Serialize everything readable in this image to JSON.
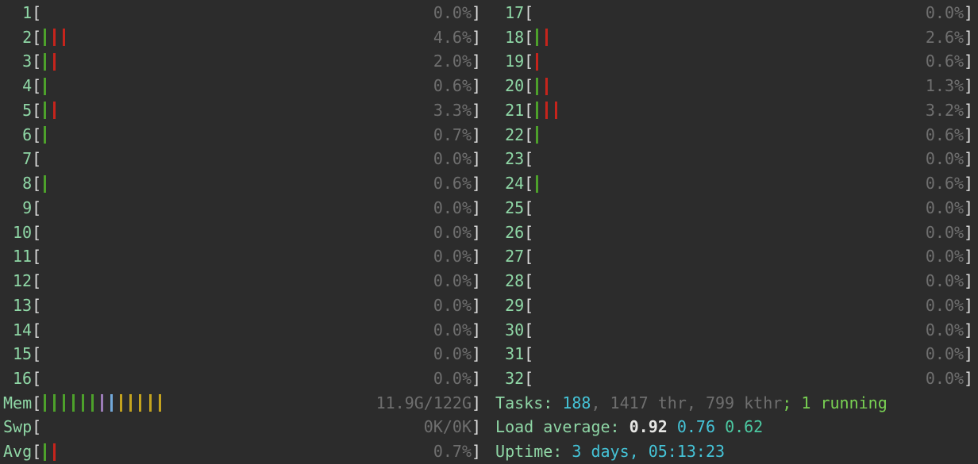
{
  "app_name": "htop-header",
  "colors": {
    "background": "#2c2c2c",
    "label_green": "#8fd7a6",
    "bracket_white": "#dcdcdc",
    "value_gray": "#6f6f6f",
    "cyan": "#45c4d8",
    "white": "#e6e6e4",
    "running_green": "#79d153",
    "teal": "#4cc9a2",
    "bar_green": "#4da12b",
    "bar_red": "#c6241c",
    "bar_yellow": "#c4a31f",
    "bar_purple": "#9c7cb8",
    "bar_blue": "#72a9da"
  },
  "cpu_meters": [
    {
      "label": "1",
      "pct": "0.0%",
      "bars": []
    },
    {
      "label": "2",
      "pct": "4.6%",
      "bars": [
        "green",
        "red",
        "red"
      ]
    },
    {
      "label": "3",
      "pct": "2.0%",
      "bars": [
        "green",
        "red"
      ]
    },
    {
      "label": "4",
      "pct": "0.6%",
      "bars": [
        "green"
      ]
    },
    {
      "label": "5",
      "pct": "3.3%",
      "bars": [
        "green",
        "red"
      ]
    },
    {
      "label": "6",
      "pct": "0.7%",
      "bars": [
        "green"
      ]
    },
    {
      "label": "7",
      "pct": "0.0%",
      "bars": []
    },
    {
      "label": "8",
      "pct": "0.6%",
      "bars": [
        "green"
      ]
    },
    {
      "label": "9",
      "pct": "0.0%",
      "bars": []
    },
    {
      "label": "10",
      "pct": "0.0%",
      "bars": []
    },
    {
      "label": "11",
      "pct": "0.0%",
      "bars": []
    },
    {
      "label": "12",
      "pct": "0.0%",
      "bars": []
    },
    {
      "label": "13",
      "pct": "0.0%",
      "bars": []
    },
    {
      "label": "14",
      "pct": "0.0%",
      "bars": []
    },
    {
      "label": "15",
      "pct": "0.0%",
      "bars": []
    },
    {
      "label": "16",
      "pct": "0.0%",
      "bars": []
    },
    {
      "label": "17",
      "pct": "0.0%",
      "bars": []
    },
    {
      "label": "18",
      "pct": "2.6%",
      "bars": [
        "green",
        "red"
      ]
    },
    {
      "label": "19",
      "pct": "0.6%",
      "bars": [
        "red"
      ]
    },
    {
      "label": "20",
      "pct": "1.3%",
      "bars": [
        "green",
        "red"
      ]
    },
    {
      "label": "21",
      "pct": "3.2%",
      "bars": [
        "green",
        "red",
        "red"
      ]
    },
    {
      "label": "22",
      "pct": "0.6%",
      "bars": [
        "green"
      ]
    },
    {
      "label": "23",
      "pct": "0.0%",
      "bars": []
    },
    {
      "label": "24",
      "pct": "0.6%",
      "bars": [
        "green"
      ]
    },
    {
      "label": "25",
      "pct": "0.0%",
      "bars": []
    },
    {
      "label": "26",
      "pct": "0.0%",
      "bars": []
    },
    {
      "label": "27",
      "pct": "0.0%",
      "bars": []
    },
    {
      "label": "28",
      "pct": "0.0%",
      "bars": []
    },
    {
      "label": "29",
      "pct": "0.0%",
      "bars": []
    },
    {
      "label": "30",
      "pct": "0.0%",
      "bars": []
    },
    {
      "label": "31",
      "pct": "0.0%",
      "bars": []
    },
    {
      "label": "32",
      "pct": "0.0%",
      "bars": []
    }
  ],
  "memory_meter": {
    "label": "Mem",
    "value": "11.9G/122G",
    "bars": [
      "green",
      "green",
      "green",
      "green",
      "green",
      "green",
      "purple",
      "blue",
      "yellow",
      "yellow",
      "yellow",
      "yellow",
      "yellow"
    ]
  },
  "swap_meter": {
    "label": "Swp",
    "value": "0K/0K",
    "bars": []
  },
  "avg_meter": {
    "label": "Avg",
    "value": "0.7%",
    "bars": [
      "green",
      "red"
    ]
  },
  "tasks_line": {
    "segments": [
      {
        "text": "Tasks: ",
        "color": "label_green"
      },
      {
        "text": "188",
        "color": "cyan"
      },
      {
        "text": ", 1417 thr, 799 kthr",
        "color": "value_gray"
      },
      {
        "text": "; ",
        "color": "running_green"
      },
      {
        "text": "1 running",
        "color": "running_green"
      }
    ]
  },
  "load_line": {
    "segments": [
      {
        "text": "Load average: ",
        "color": "label_green"
      },
      {
        "text": "0.92 ",
        "color": "white",
        "bold": true
      },
      {
        "text": "0.76 ",
        "color": "cyan"
      },
      {
        "text": "0.62",
        "color": "teal"
      }
    ]
  },
  "uptime_line": {
    "segments": [
      {
        "text": "Uptime: ",
        "color": "label_green"
      },
      {
        "text": "3 days, 05:13:23",
        "color": "cyan"
      }
    ]
  }
}
